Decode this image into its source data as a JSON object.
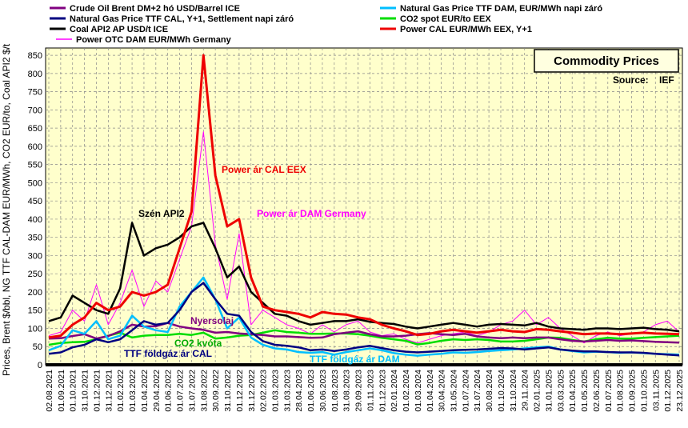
{
  "chart_data": {
    "type": "line",
    "title": "Commodity Prices",
    "source_label": "Source:",
    "source_value": "IEF",
    "ylabel": "Prices, Brent $/bbl, NG TTF CAL-DAM EUR/MWh, CO2 EUR/to, Coal API2 $/t",
    "ylim": [
      0,
      870
    ],
    "yticks": [
      0,
      50,
      100,
      150,
      200,
      250,
      300,
      350,
      400,
      450,
      500,
      550,
      600,
      650,
      700,
      750,
      800,
      850
    ],
    "grid": true,
    "legend_position": "top",
    "x_tick_labels": [
      "02.08.2021",
      "01.09.2021",
      "01.10.2021",
      "31.10.2021",
      "01.12.2021",
      "31.12.2021",
      "01.02.2022",
      "01.03.2022",
      "01.04.2022",
      "29.04.2022",
      "01.06.2022",
      "01.07.2022",
      "31.07.2022",
      "31.08.2022",
      "30.09.2022",
      "31.10.2022",
      "01.12.2022",
      "31.12.2022",
      "02.02.2023",
      "01.03.2023",
      "31.03.2023",
      "28.04.2023",
      "01.06.2023",
      "30.06.2023",
      "01.08.2023",
      "31.08.2023",
      "29.09.2023",
      "01.11.2023",
      "01.12.2023",
      "02.01.2024",
      "01.02.2024",
      "01.03.2024",
      "01.04.2024",
      "30.04.2024",
      "31.05.2024",
      "01.07.2024",
      "31.07.2024",
      "30.08.2024",
      "01.10.2024",
      "31.10.2024",
      "29.11.2024",
      "02.01.2025",
      "31.01.2025",
      "03.03.2025",
      "01.04.2025",
      "01.05.2025",
      "02.06.2025",
      "01.07.2025",
      "01.08.2025",
      "01.09.2025",
      "01.10.2025",
      "03.11.2025",
      "01.12.2025",
      "23.12.2025"
    ],
    "series": [
      {
        "name": "Crude Oil Brent DM+2 hó USD/Barrel ICE",
        "color": "#800080",
        "width": 2.5,
        "values": [
          72,
          73,
          79,
          84,
          72,
          79,
          92,
          110,
          105,
          106,
          115,
          105,
          100,
          96,
          88,
          90,
          86,
          84,
          82,
          78,
          78,
          76,
          74,
          75,
          84,
          88,
          92,
          84,
          78,
          78,
          80,
          84,
          87,
          84,
          82,
          85,
          78,
          75,
          73,
          75,
          73,
          75,
          75,
          70,
          66,
          64,
          66,
          68,
          66,
          67,
          65,
          63,
          62,
          61
        ]
      },
      {
        "name": "Natural Gas Price TTF DAM, EUR/MWh napi záró",
        "color": "#00BFFF",
        "width": 2.5,
        "values": [
          40,
          52,
          95,
          85,
          120,
          70,
          80,
          135,
          105,
          95,
          90,
          160,
          200,
          240,
          180,
          100,
          130,
          75,
          55,
          45,
          42,
          35,
          33,
          35,
          28,
          35,
          40,
          45,
          40,
          32,
          28,
          25,
          28,
          30,
          34,
          33,
          35,
          38,
          40,
          42,
          45,
          48,
          50,
          42,
          38,
          34,
          36,
          35,
          33,
          34,
          32,
          30,
          29,
          28
        ]
      },
      {
        "name": "Natural Gas Price TTF CAL, Y+1, Settlement napi záró",
        "color": "#000080",
        "width": 2.5,
        "values": [
          30,
          34,
          48,
          55,
          70,
          62,
          70,
          95,
          120,
          110,
          115,
          150,
          200,
          225,
          180,
          140,
          135,
          90,
          65,
          55,
          52,
          48,
          40,
          42,
          38,
          42,
          48,
          52,
          46,
          40,
          36,
          34,
          36,
          38,
          40,
          41,
          42,
          44,
          46,
          45,
          42,
          45,
          48,
          42,
          39,
          37,
          37,
          35,
          34,
          34,
          33,
          30,
          28,
          26
        ]
      },
      {
        "name": "CO2 spot EUR/to EEX",
        "color": "#00DD00",
        "width": 2.5,
        "values": [
          55,
          60,
          62,
          63,
          70,
          80,
          88,
          75,
          80,
          82,
          82,
          85,
          82,
          88,
          72,
          75,
          80,
          82,
          88,
          95,
          90,
          88,
          85,
          85,
          86,
          86,
          84,
          80,
          74,
          70,
          66,
          56,
          60,
          66,
          70,
          68,
          70,
          68,
          64,
          64,
          66,
          70,
          75,
          74,
          68,
          64,
          70,
          74,
          72,
          72,
          74,
          76,
          78,
          80
        ]
      },
      {
        "name": "Coal API2 AP USD/t ICE",
        "color": "#000000",
        "width": 2.5,
        "values": [
          120,
          130,
          190,
          170,
          150,
          140,
          210,
          390,
          300,
          320,
          330,
          350,
          380,
          390,
          320,
          240,
          270,
          200,
          170,
          140,
          135,
          120,
          110,
          115,
          120,
          120,
          125,
          118,
          115,
          112,
          105,
          100,
          105,
          110,
          115,
          110,
          105,
          110,
          112,
          110,
          108,
          115,
          105,
          100,
          98,
          96,
          100,
          100,
          98,
          100,
          102,
          98,
          96,
          92
        ]
      },
      {
        "name": "Power CAL EUR/MWh EEX, Y+1",
        "color": "#EE0000",
        "width": 3,
        "values": [
          75,
          80,
          110,
          130,
          170,
          150,
          160,
          200,
          190,
          200,
          220,
          320,
          420,
          850,
          520,
          380,
          400,
          240,
          160,
          150,
          145,
          140,
          130,
          145,
          140,
          138,
          130,
          125,
          110,
          100,
          92,
          82,
          85,
          92,
          96,
          92,
          88,
          92,
          96,
          92,
          90,
          98,
          96,
          92,
          88,
          84,
          86,
          86,
          84,
          86,
          88,
          86,
          85,
          84
        ]
      },
      {
        "name": "Power OTC DAM EUR/MWh Germany",
        "color": "#FF00FF",
        "width": 1,
        "values": [
          80,
          90,
          150,
          120,
          220,
          110,
          170,
          260,
          160,
          230,
          200,
          290,
          380,
          640,
          330,
          180,
          360,
          110,
          150,
          130,
          110,
          100,
          85,
          110,
          90,
          110,
          120,
          90,
          80,
          85,
          70,
          60,
          70,
          80,
          85,
          90,
          80,
          90,
          110,
          120,
          150,
          110,
          130,
          100,
          80,
          60,
          80,
          90,
          80,
          85,
          90,
          110,
          120,
          90
        ]
      }
    ],
    "annotations": [
      {
        "text": "Power ár CAL EEX",
        "color": "#EE0000"
      },
      {
        "text": "Power ár DAM Germany",
        "color": "#FF00FF"
      },
      {
        "text": "Szén API2",
        "color": "#000000"
      },
      {
        "text": "Nyersolaj",
        "color": "#800080"
      },
      {
        "text": "CO2 kvóta",
        "color": "#00AA00"
      },
      {
        "text": "TTF földgáz ár CAL",
        "color": "#000080"
      },
      {
        "text": "TTF földgáz ár DAM",
        "color": "#00BFFF"
      }
    ]
  }
}
